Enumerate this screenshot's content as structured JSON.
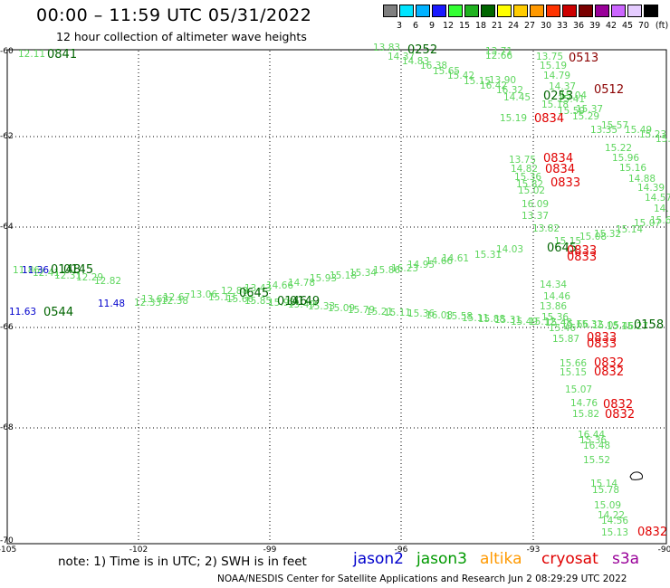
{
  "header": {
    "title": "00:00 – 11:59 UTC 05/31/2022",
    "subtitle": "12 hour collection of altimeter wave heights"
  },
  "scale": {
    "unit": "(ft)",
    "steps": [
      {
        "color": "#7f7f7f",
        "label": "3"
      },
      {
        "color": "#00e5ff",
        "label": "6"
      },
      {
        "color": "#00b2ff",
        "label": "9"
      },
      {
        "color": "#1a1aff",
        "label": "12"
      },
      {
        "color": "#33ff33",
        "label": "15"
      },
      {
        "color": "#1fb21f",
        "label": "18"
      },
      {
        "color": "#006600",
        "label": "21"
      },
      {
        "color": "#ffff00",
        "label": "24"
      },
      {
        "color": "#ffcc00",
        "label": "27"
      },
      {
        "color": "#ff9900",
        "label": "30"
      },
      {
        "color": "#ff3300",
        "label": "33"
      },
      {
        "color": "#cc0000",
        "label": "36"
      },
      {
        "color": "#7a0000",
        "label": "39"
      },
      {
        "color": "#990099",
        "label": "42"
      },
      {
        "color": "#cc66ff",
        "label": "45"
      },
      {
        "color": "#e5ccff",
        "label": "70"
      },
      {
        "color": "#000000",
        "label": ""
      }
    ]
  },
  "axes": {
    "lat_labels": [
      "-60",
      "-62",
      "-64",
      "-66",
      "-68",
      "-70"
    ],
    "lon_labels": [
      "-105",
      "-102",
      "-99",
      "-96",
      "-93",
      "-90"
    ]
  },
  "colors": {
    "light_green": "#5ed65e",
    "dark_green": "#006400",
    "red": "#e00000",
    "dark_red": "#8b0000",
    "blue": "#0000cc"
  },
  "wave_labels": [
    {
      "t": "12.11",
      "c": "lg"
    },
    {
      "t": "13.83",
      "c": "lg"
    },
    {
      "t": "14.37",
      "c": "lg"
    },
    {
      "t": "14.83",
      "c": "lg"
    },
    {
      "t": "16.38",
      "c": "lg"
    },
    {
      "t": "15.65",
      "c": "lg"
    },
    {
      "t": "15.42",
      "c": "lg"
    },
    {
      "t": "15.15",
      "c": "lg"
    },
    {
      "t": "16.42",
      "c": "lg"
    },
    {
      "t": "13.71",
      "c": "lg"
    },
    {
      "t": "12.66",
      "c": "lg"
    },
    {
      "t": "13.90",
      "c": "lg"
    },
    {
      "t": "16.32",
      "c": "lg"
    },
    {
      "t": "13.75",
      "c": "lg"
    },
    {
      "t": "15.19",
      "c": "lg"
    },
    {
      "t": "14.79",
      "c": "lg"
    },
    {
      "t": "14.37",
      "c": "lg"
    },
    {
      "t": "15.04",
      "c": "lg"
    },
    {
      "t": "14.45",
      "c": "lg"
    },
    {
      "t": "15.41",
      "c": "lg"
    },
    {
      "t": "15.18",
      "c": "lg"
    },
    {
      "t": "15.59",
      "c": "lg"
    },
    {
      "t": "15.37",
      "c": "lg"
    },
    {
      "t": "15.29",
      "c": "lg"
    },
    {
      "t": "15.19",
      "c": "lg"
    },
    {
      "t": "15.57",
      "c": "lg"
    },
    {
      "t": "15.49",
      "c": "lg"
    },
    {
      "t": "13.35",
      "c": "lg"
    },
    {
      "t": "15.23",
      "c": "lg"
    },
    {
      "t": "15.",
      "c": "lg"
    },
    {
      "t": "15.22",
      "c": "lg"
    },
    {
      "t": "15.96",
      "c": "lg"
    },
    {
      "t": "15.16",
      "c": "lg"
    },
    {
      "t": "13.75",
      "c": "lg"
    },
    {
      "t": "14.82",
      "c": "lg"
    },
    {
      "t": "15.36",
      "c": "lg"
    },
    {
      "t": "15.82",
      "c": "lg"
    },
    {
      "t": "15.02",
      "c": "lg"
    },
    {
      "t": "14.88",
      "c": "lg"
    },
    {
      "t": "14.39",
      "c": "lg"
    },
    {
      "t": "14.57",
      "c": "lg"
    },
    {
      "t": "14.",
      "c": "lg"
    },
    {
      "t": "16.09",
      "c": "lg"
    },
    {
      "t": "13.37",
      "c": "lg"
    },
    {
      "t": "15.6",
      "c": "lg"
    },
    {
      "t": "13.82",
      "c": "lg"
    },
    {
      "t": "15.07",
      "c": "lg"
    },
    {
      "t": "15.14",
      "c": "lg"
    },
    {
      "t": "15.32",
      "c": "lg"
    },
    {
      "t": "15.08",
      "c": "lg"
    },
    {
      "t": "15.15",
      "c": "lg"
    },
    {
      "t": "14.03",
      "c": "lg"
    },
    {
      "t": "15.31",
      "c": "lg"
    },
    {
      "t": "14.61",
      "c": "lg"
    },
    {
      "t": "14.66",
      "c": "lg"
    },
    {
      "t": "14.95",
      "c": "lg"
    },
    {
      "t": "16.23",
      "c": "lg"
    },
    {
      "t": "15.86",
      "c": "lg"
    },
    {
      "t": "15.34",
      "c": "lg"
    },
    {
      "t": "15.18",
      "c": "lg"
    },
    {
      "t": "15.93",
      "c": "lg"
    },
    {
      "t": "14.78",
      "c": "lg"
    },
    {
      "t": "14.66",
      "c": "lg"
    },
    {
      "t": "13.43",
      "c": "lg"
    },
    {
      "t": "12.88",
      "c": "lg"
    },
    {
      "t": "13.06",
      "c": "lg"
    },
    {
      "t": "12.67",
      "c": "lg"
    },
    {
      "t": "13.63",
      "c": "lg"
    },
    {
      "t": "12.38",
      "c": "lg"
    },
    {
      "t": "12.33",
      "c": "lg"
    },
    {
      "t": "11.86",
      "c": "lg"
    },
    {
      "t": "12.41",
      "c": "lg"
    },
    {
      "t": "12.31",
      "c": "lg"
    },
    {
      "t": "12.29",
      "c": "lg"
    },
    {
      "t": "12.82",
      "c": "lg"
    },
    {
      "t": "14.34",
      "c": "lg"
    },
    {
      "t": "14.46",
      "c": "lg"
    },
    {
      "t": "13.86",
      "c": "lg"
    },
    {
      "t": "15.36",
      "c": "lg"
    },
    {
      "t": "15.46",
      "c": "lg"
    },
    {
      "t": "15.87",
      "c": "lg"
    },
    {
      "t": "15.66",
      "c": "lg"
    },
    {
      "t": "15.15",
      "c": "lg"
    },
    {
      "t": "15.07",
      "c": "lg"
    },
    {
      "t": "14.76",
      "c": "lg"
    },
    {
      "t": "15.82",
      "c": "lg"
    },
    {
      "t": "16.44",
      "c": "lg"
    },
    {
      "t": "15.36",
      "c": "lg"
    },
    {
      "t": "16.48",
      "c": "lg"
    },
    {
      "t": "15.52",
      "c": "lg"
    },
    {
      "t": "15.14",
      "c": "lg"
    },
    {
      "t": "15.78",
      "c": "lg"
    },
    {
      "t": "15.09",
      "c": "lg"
    },
    {
      "t": "14.22",
      "c": "lg"
    },
    {
      "t": "14.56",
      "c": "lg"
    },
    {
      "t": "15.13",
      "c": "lg"
    },
    {
      "t": "15.36",
      "c": "lg"
    },
    {
      "t": "16.08",
      "c": "lg"
    },
    {
      "t": "15.58",
      "c": "lg"
    },
    {
      "t": "15.11",
      "c": "lg"
    },
    {
      "t": "15.88",
      "c": "lg"
    },
    {
      "t": "15.31",
      "c": "lg"
    },
    {
      "t": "15.49",
      "c": "lg"
    },
    {
      "t": "15.12",
      "c": "lg"
    },
    {
      "t": "15.48",
      "c": "lg"
    },
    {
      "t": "15.66",
      "c": "lg"
    },
    {
      "t": "15.32",
      "c": "lg"
    },
    {
      "t": "15.05",
      "c": "lg"
    },
    {
      "t": "15.46",
      "c": "lg"
    },
    {
      "t": "15.27",
      "c": "lg"
    },
    {
      "t": "15.79",
      "c": "lg"
    },
    {
      "t": "15.21",
      "c": "lg"
    },
    {
      "t": "15.11",
      "c": "lg"
    },
    {
      "t": "15.09",
      "c": "lg"
    },
    {
      "t": "15.33",
      "c": "lg"
    },
    {
      "t": "15.49",
      "c": "lg"
    },
    {
      "t": "15.93",
      "c": "lg"
    },
    {
      "t": "15.85",
      "c": "lg"
    },
    {
      "t": "15.66",
      "c": "lg"
    },
    {
      "t": "15.13",
      "c": "lg"
    },
    {
      "t": "11.63",
      "c": "bl"
    },
    {
      "t": "11.48",
      "c": "bl"
    },
    {
      "t": "11.36",
      "c": "bl"
    }
  ],
  "time_labels": [
    {
      "t": "0841",
      "c": "dg"
    },
    {
      "t": "0252",
      "c": "dg"
    },
    {
      "t": "0513",
      "c": "dr"
    },
    {
      "t": "0512",
      "c": "dr"
    },
    {
      "t": "0253",
      "c": "dg"
    },
    {
      "t": "0834",
      "c": "r"
    },
    {
      "t": "0834",
      "c": "r"
    },
    {
      "t": "0834",
      "c": "r"
    },
    {
      "t": "0833",
      "c": "r"
    },
    {
      "t": "0645",
      "c": "dg"
    },
    {
      "t": "0833",
      "c": "r"
    },
    {
      "t": "0833",
      "c": "r"
    },
    {
      "t": "0148",
      "c": "dg"
    },
    {
      "t": "0145",
      "c": "dg"
    },
    {
      "t": "0645",
      "c": "dg"
    },
    {
      "t": "0544",
      "c": "dg"
    },
    {
      "t": "0146",
      "c": "dg"
    },
    {
      "t": "0149",
      "c": "dg"
    },
    {
      "t": "0158",
      "c": "dg"
    },
    {
      "t": "0833",
      "c": "r"
    },
    {
      "t": "0833",
      "c": "r"
    },
    {
      "t": "0832",
      "c": "r"
    },
    {
      "t": "0832",
      "c": "r"
    },
    {
      "t": "0832",
      "c": "r"
    },
    {
      "t": "0832",
      "c": "r"
    },
    {
      "t": "0832",
      "c": "r"
    }
  ],
  "footer": {
    "note": "note: 1) Time is in UTC; 2) SWH is in feet",
    "satellites": [
      {
        "name": "jason2",
        "color": "#0000cc"
      },
      {
        "name": "jason3",
        "color": "#009900"
      },
      {
        "name": "altika",
        "color": "#ff9900"
      },
      {
        "name": "cryosat",
        "color": "#e00000"
      },
      {
        "name": "s3a",
        "color": "#990099"
      }
    ],
    "credit": "NOAA/NESDIS Center for Satellite Applications and Research   Jun  2 08:29:29 UTC 2022"
  }
}
